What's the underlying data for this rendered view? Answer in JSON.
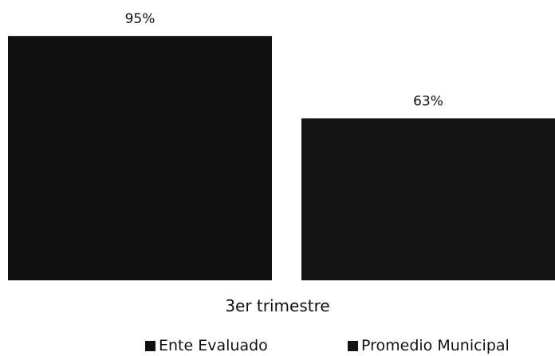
{
  "chart_data": {
    "type": "bar",
    "categories": [
      "3er trimestre"
    ],
    "series": [
      {
        "name": "Ente Evaluado",
        "values": [
          95
        ],
        "value_labels": [
          "95%"
        ],
        "color": "#111111"
      },
      {
        "name": "Promedio Municipal",
        "values": [
          63
        ],
        "value_labels": [
          "63%"
        ],
        "color": "#141414"
      }
    ],
    "ylim": [
      0,
      100
    ],
    "grid": false,
    "legend_placement": "bottom"
  }
}
